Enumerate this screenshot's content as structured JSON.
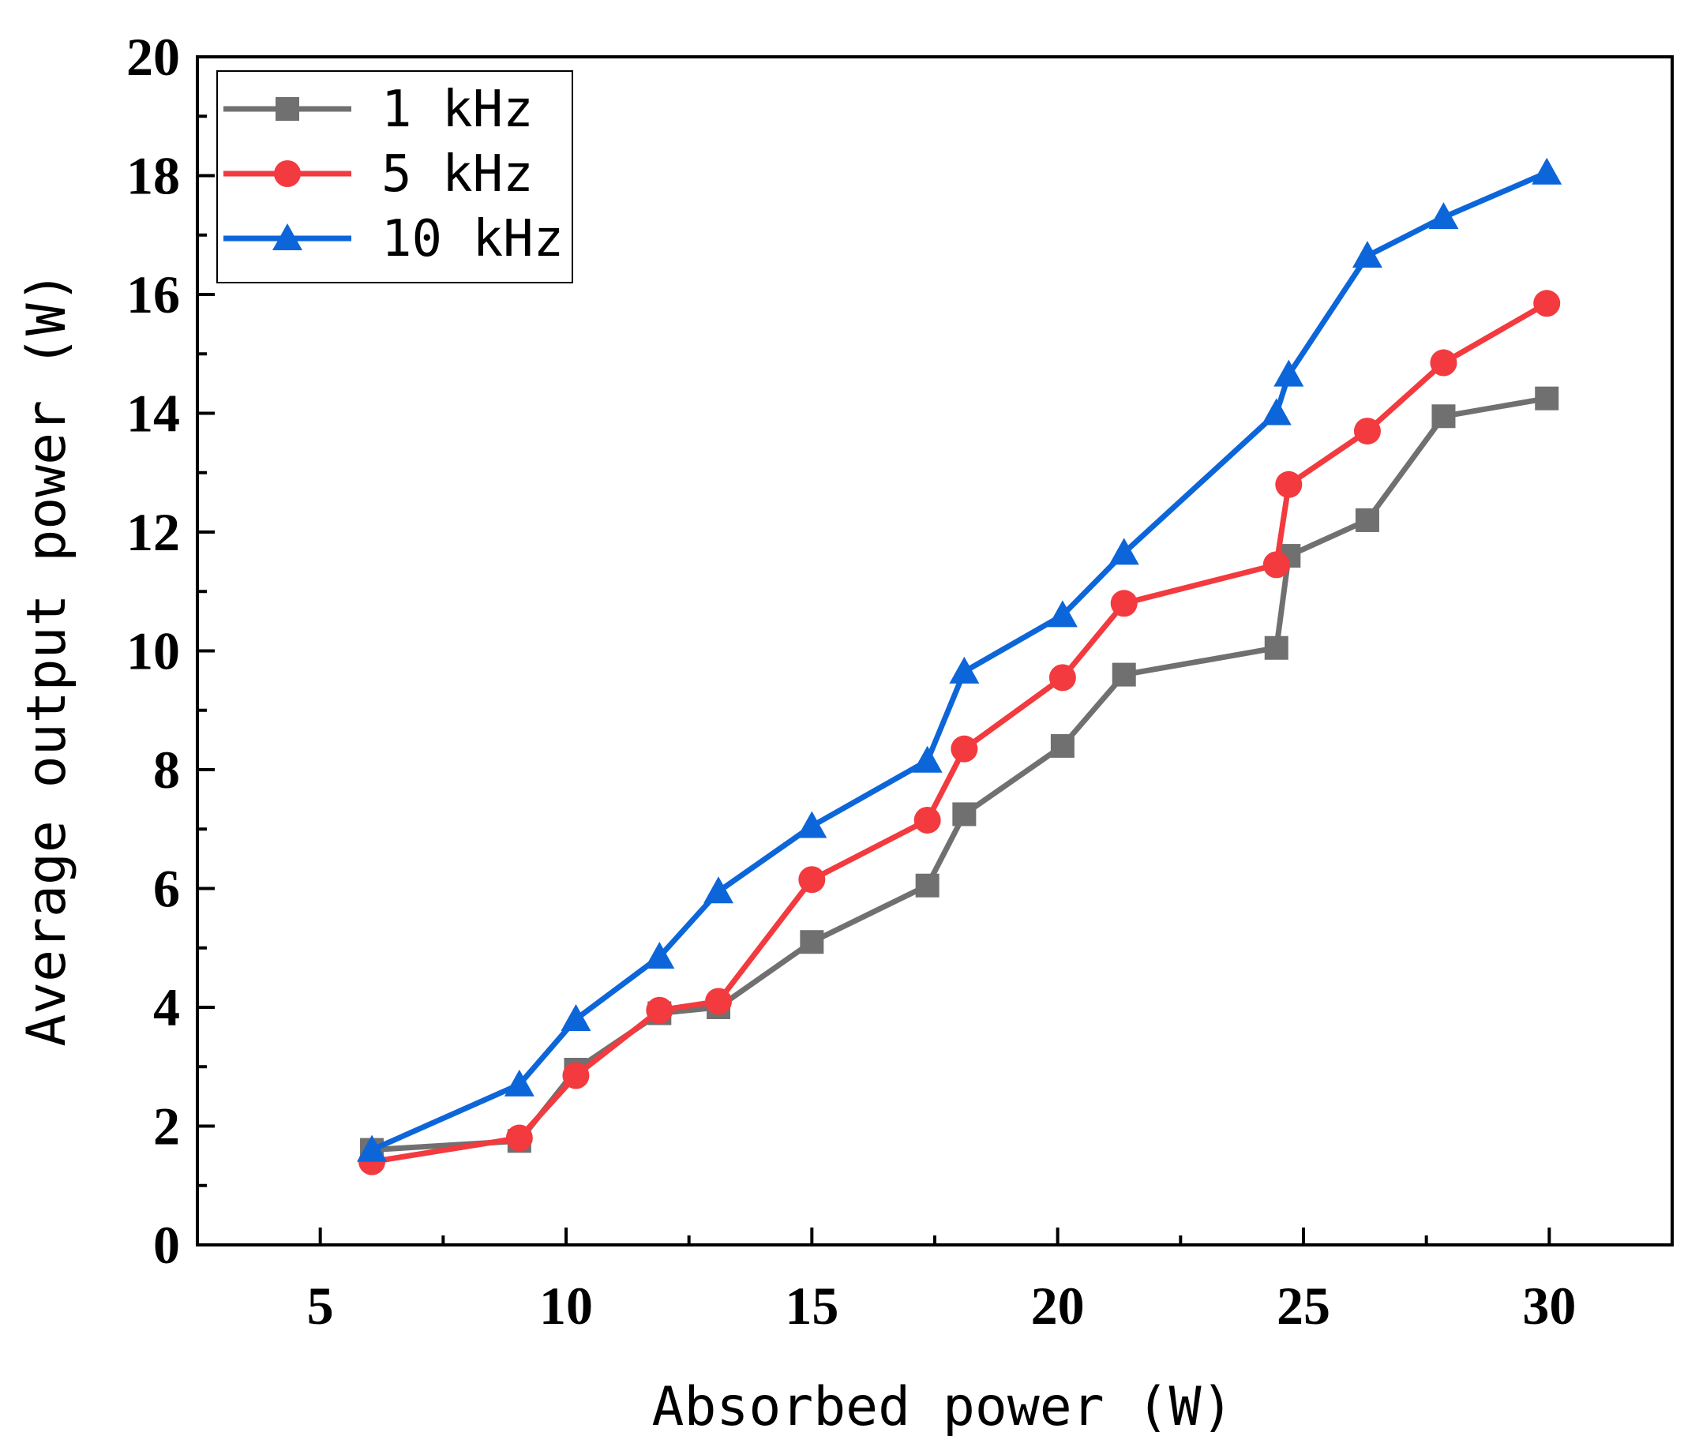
{
  "chart_data": {
    "type": "line",
    "xlabel": "Absorbed power (W)",
    "ylabel": "Average output power (W)",
    "xlim": [
      2.5,
      32.5
    ],
    "ylim": [
      0,
      20
    ],
    "xticks": [
      5,
      10,
      15,
      20,
      25,
      30
    ],
    "yticks": [
      0,
      2,
      4,
      6,
      8,
      10,
      12,
      14,
      16,
      18,
      20
    ],
    "grid": false,
    "legend_position": "top-left",
    "series": [
      {
        "name": "1 kHz",
        "color": "#707070",
        "marker": "square",
        "x": [
          6.05,
          9.05,
          10.2,
          11.9,
          13.1,
          15.0,
          17.35,
          18.1,
          20.1,
          21.35,
          24.45,
          24.7,
          26.3,
          27.85,
          29.95
        ],
        "y": [
          1.6,
          1.75,
          2.95,
          3.9,
          4.0,
          5.1,
          6.05,
          7.25,
          8.4,
          9.6,
          10.05,
          11.6,
          12.2,
          13.95,
          14.25
        ]
      },
      {
        "name": "5 kHz",
        "color": "#f23a3f",
        "marker": "circle",
        "x": [
          6.05,
          9.05,
          10.2,
          11.9,
          13.1,
          15.0,
          17.35,
          18.1,
          20.1,
          21.35,
          24.45,
          24.7,
          26.3,
          27.85,
          29.95
        ],
        "y": [
          1.4,
          1.8,
          2.85,
          3.95,
          4.1,
          6.15,
          7.15,
          8.35,
          9.55,
          10.8,
          11.45,
          12.8,
          13.7,
          14.85,
          15.85
        ]
      },
      {
        "name": "10 kHz",
        "color": "#0c66d9",
        "marker": "triangle",
        "x": [
          6.05,
          9.05,
          10.2,
          11.9,
          13.1,
          15.0,
          17.35,
          18.1,
          20.1,
          21.35,
          24.45,
          24.7,
          26.3,
          27.85,
          29.95
        ],
        "y": [
          1.6,
          2.7,
          3.8,
          4.85,
          5.95,
          7.05,
          8.15,
          9.65,
          10.6,
          11.65,
          14.0,
          14.65,
          16.65,
          17.3,
          18.05
        ]
      }
    ]
  }
}
